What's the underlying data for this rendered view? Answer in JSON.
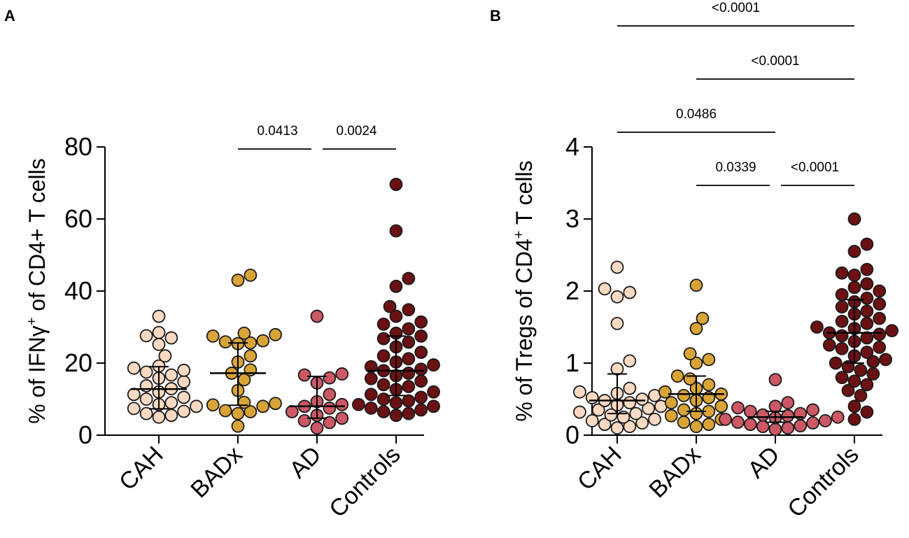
{
  "chart_data": [
    {
      "type": "scatter",
      "panel": "A",
      "ylabel": {
        "pre": "% of IFNγ",
        "sup": "+",
        "post": " of CD4+ T cells"
      },
      "ylim": [
        0,
        80
      ],
      "yticks": [
        0,
        20,
        40,
        60,
        80
      ],
      "categories": [
        "CAH",
        "BADx",
        "AD",
        "Controls"
      ],
      "colors": [
        "#fcd9c2",
        "#d9a437",
        "#cc5866",
        "#6b1114"
      ],
      "series": [
        {
          "name": "CAH",
          "median": 12.8,
          "iqr": [
            7.3,
            19.0
          ],
          "values": [
            33.0,
            28.5,
            27.6,
            27.0,
            25.2,
            22.0,
            19.2,
            18.6,
            18.0,
            17.5,
            16.7,
            15.8,
            14.8,
            13.7,
            12.9,
            12.0,
            11.3,
            10.5,
            10.0,
            9.0,
            8.5,
            8.0,
            7.4,
            6.6,
            6.0,
            5.5,
            5.0
          ]
        },
        {
          "name": "BADx",
          "median": 17.2,
          "iqr": [
            8.3,
            25.6
          ],
          "values": [
            44.4,
            43.0,
            28.3,
            27.9,
            27.5,
            26.2,
            25.9,
            25.6,
            25.4,
            22.0,
            20.3,
            18.1,
            17.2,
            15.4,
            12.4,
            9.1,
            8.8,
            8.4,
            8.0,
            6.8,
            6.5,
            6.0,
            2.5
          ]
        },
        {
          "name": "AD",
          "median": 8.0,
          "iqr": [
            4.7,
            16.3
          ],
          "values": [
            33.0,
            17.0,
            16.7,
            15.9,
            14.5,
            11.3,
            9.3,
            8.5,
            8.0,
            7.5,
            6.5,
            5.5,
            4.7,
            4.0,
            3.5,
            2.0
          ]
        },
        {
          "name": "Controls",
          "median": 17.9,
          "iqr": [
            11.0,
            27.5
          ],
          "values": [
            69.6,
            56.7,
            43.5,
            41.3,
            35.7,
            34.8,
            33.0,
            31.4,
            30.8,
            29.5,
            28.3,
            27.5,
            26.8,
            25.8,
            24.5,
            23.0,
            22.0,
            21.2,
            20.3,
            19.5,
            19.0,
            18.3,
            17.9,
            17.2,
            16.5,
            15.7,
            15.0,
            14.0,
            13.5,
            12.7,
            12.0,
            11.3,
            10.5,
            10.0,
            9.5,
            9.0,
            8.5,
            8.0,
            7.5,
            7.0,
            6.5,
            6.0,
            5.5
          ]
        }
      ],
      "comparisons": [
        {
          "groups": [
            "BADx",
            "AD"
          ],
          "label": "0.0413",
          "level": 0
        },
        {
          "groups": [
            "AD",
            "Controls"
          ],
          "label": "0.0024",
          "level": 0
        }
      ]
    },
    {
      "type": "scatter",
      "panel": "B",
      "ylabel": {
        "pre": "% of Tregs of CD4",
        "sup": "+",
        "post": " T cells"
      },
      "ylim": [
        0,
        4
      ],
      "yticks": [
        0,
        1,
        2,
        3,
        4
      ],
      "categories": [
        "CAH",
        "BADx",
        "AD",
        "Controls"
      ],
      "colors": [
        "#fcd9c2",
        "#d9a437",
        "#cc5866",
        "#6b1114"
      ],
      "series": [
        {
          "name": "CAH",
          "median": 0.48,
          "iqr": [
            0.3,
            0.85
          ],
          "values": [
            2.33,
            2.03,
            1.98,
            1.92,
            1.55,
            1.03,
            0.92,
            0.65,
            0.6,
            0.58,
            0.55,
            0.52,
            0.5,
            0.48,
            0.45,
            0.42,
            0.4,
            0.37,
            0.35,
            0.32,
            0.3,
            0.28,
            0.25,
            0.22,
            0.2,
            0.17,
            0.15,
            0.12,
            0.1
          ]
        },
        {
          "name": "BADx",
          "median": 0.57,
          "iqr": [
            0.33,
            0.82
          ],
          "values": [
            2.08,
            1.62,
            1.48,
            1.13,
            1.05,
            1.0,
            0.82,
            0.78,
            0.7,
            0.65,
            0.6,
            0.57,
            0.55,
            0.52,
            0.48,
            0.45,
            0.4,
            0.35,
            0.33,
            0.3,
            0.27,
            0.22,
            0.18,
            0.15,
            0.12
          ]
        },
        {
          "name": "AD",
          "median": 0.25,
          "iqr": [
            0.18,
            0.33
          ],
          "values": [
            0.77,
            0.45,
            0.4,
            0.38,
            0.35,
            0.33,
            0.3,
            0.28,
            0.27,
            0.25,
            0.24,
            0.22,
            0.2,
            0.18,
            0.17,
            0.15,
            0.13,
            0.12,
            0.1,
            0.08
          ]
        },
        {
          "name": "Controls",
          "median": 1.42,
          "iqr": [
            1.0,
            1.88
          ],
          "values": [
            3.0,
            2.65,
            2.55,
            2.3,
            2.25,
            2.22,
            2.1,
            2.05,
            2.0,
            1.95,
            1.9,
            1.85,
            1.82,
            1.78,
            1.72,
            1.68,
            1.62,
            1.58,
            1.55,
            1.5,
            1.48,
            1.45,
            1.42,
            1.4,
            1.38,
            1.35,
            1.3,
            1.25,
            1.22,
            1.2,
            1.15,
            1.1,
            1.05,
            1.02,
            1.0,
            0.95,
            0.9,
            0.85,
            0.8,
            0.75,
            0.7,
            0.62,
            0.55,
            0.4,
            0.32,
            0.22
          ]
        }
      ],
      "comparisons": [
        {
          "groups": [
            "CAH",
            "Controls"
          ],
          "label": "<0.0001",
          "level": 3
        },
        {
          "groups": [
            "BADx",
            "Controls"
          ],
          "label": "<0.0001",
          "level": 2
        },
        {
          "groups": [
            "CAH",
            "AD"
          ],
          "label": "0.0486",
          "level": 1
        },
        {
          "groups": [
            "BADx",
            "AD"
          ],
          "label": "0.0339",
          "level": 0
        },
        {
          "groups": [
            "AD",
            "Controls"
          ],
          "label": "<0.0001",
          "level": 0
        }
      ]
    }
  ]
}
